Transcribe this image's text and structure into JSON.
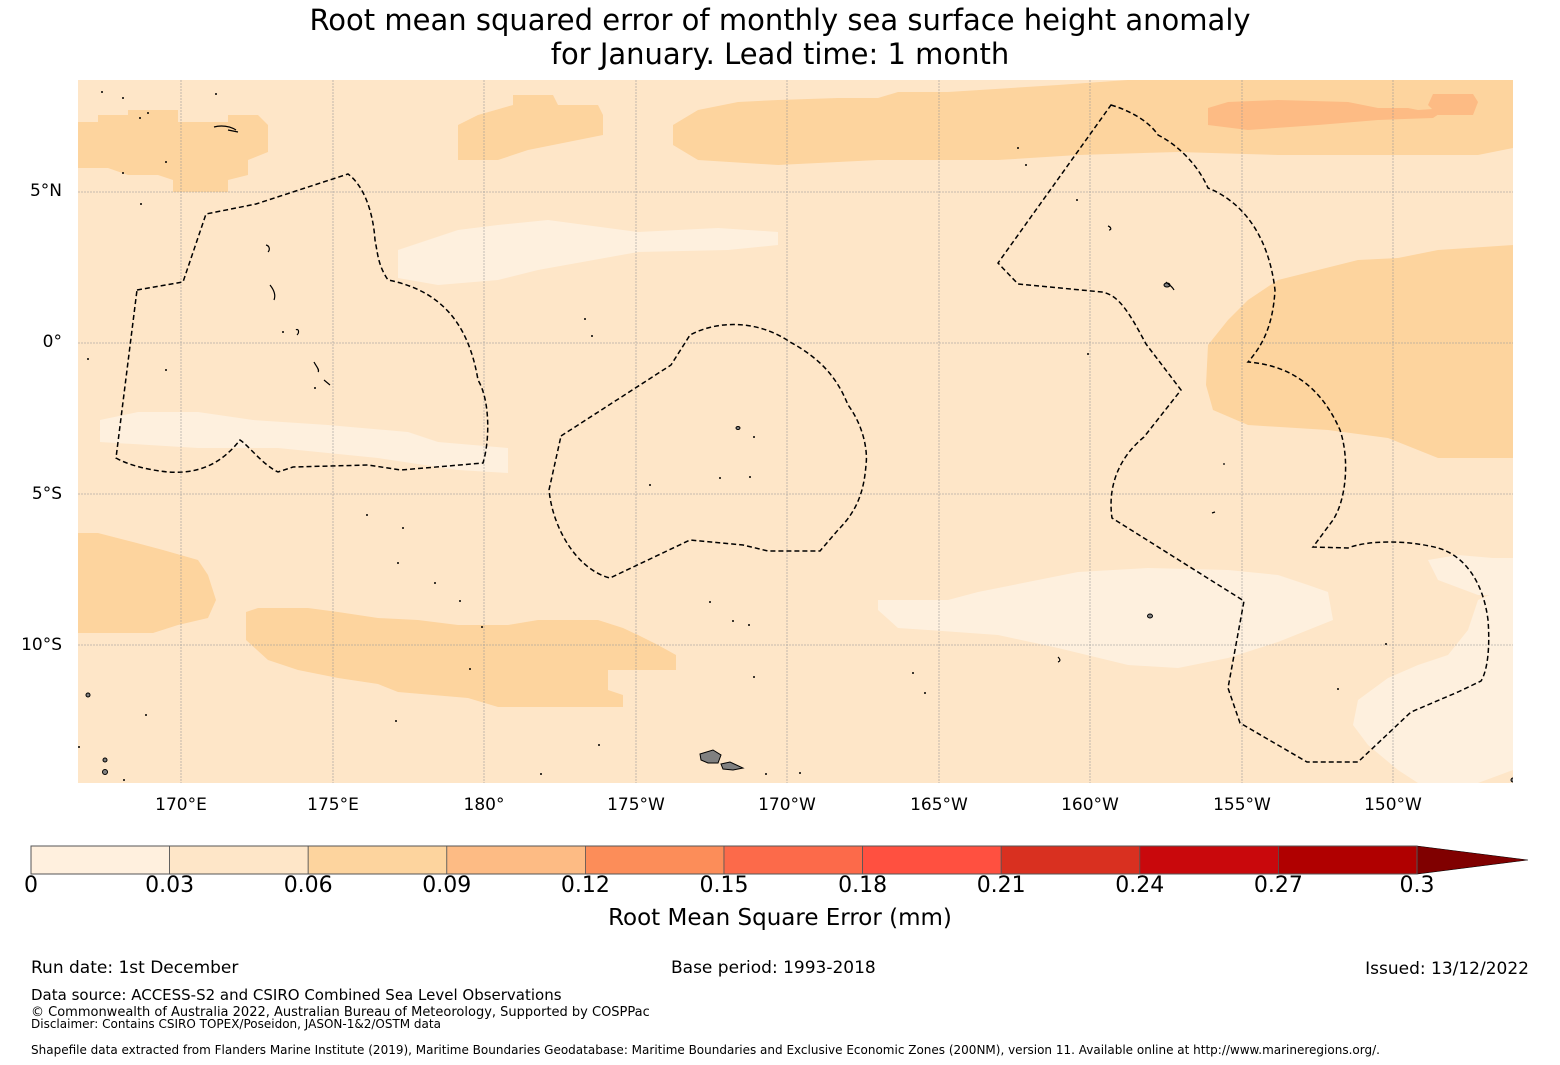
{
  "title": {
    "line1": "Root mean squared error of monthly sea surface height anomaly",
    "line2": "for January. Lead time: 1 month"
  },
  "map": {
    "latitude_labels": [
      "5°N",
      "0°",
      "5°S",
      "10°S"
    ],
    "longitude_labels": [
      "170°E",
      "175°E",
      "180°",
      "175°W",
      "170°W",
      "165°W",
      "160°W",
      "155°W",
      "150°W"
    ],
    "colors": {
      "land": "#808080",
      "gridline": "#999999",
      "eez_boundary": "#000000"
    },
    "field_description_levels": {
      "0-0.03": "#fef0de",
      "0.03-0.06": "#fee6c8",
      "0.06-0.09": "#fdd49e",
      "0.09-0.12": "#fdbb84"
    }
  },
  "colorbar": {
    "ticks": [
      "0",
      "0.03",
      "0.06",
      "0.09",
      "0.12",
      "0.15",
      "0.18",
      "0.21",
      "0.24",
      "0.27",
      "0.3"
    ],
    "colors": [
      "#fff0de",
      "#fee6c8",
      "#fdd49e",
      "#fdbb84",
      "#fc8d59",
      "#fc6a4a",
      "#ff5040",
      "#d93020",
      "#c9080c",
      "#b00000",
      "#800000"
    ],
    "label": "Root Mean Square Error (mm)",
    "extend": "max"
  },
  "footer": {
    "run_date": "Run date: 1st December",
    "base_period": "Base period: 1993-2018",
    "issued": "Issued: 13/12/2022",
    "data_source": "Data source: ACCESS-S2 and CSIRO Combined Sea Level Observations",
    "copyright": "© Commonwealth of Australia 2022, Australian Bureau of Meteorology, Supported by COSPPac",
    "disclaimer": "Disclaimer: Contains CSIRO TOPEX/Poseidon, JASON-1&2/OSTM data",
    "shapefile": "Shapefile data extracted from Flanders Marine Institute (2019), Maritime Boundaries Geodatabase: Maritime Boundaries and Exclusive Economic Zones (200NM), version 11. Available online at http://www.marineregions.org/."
  }
}
